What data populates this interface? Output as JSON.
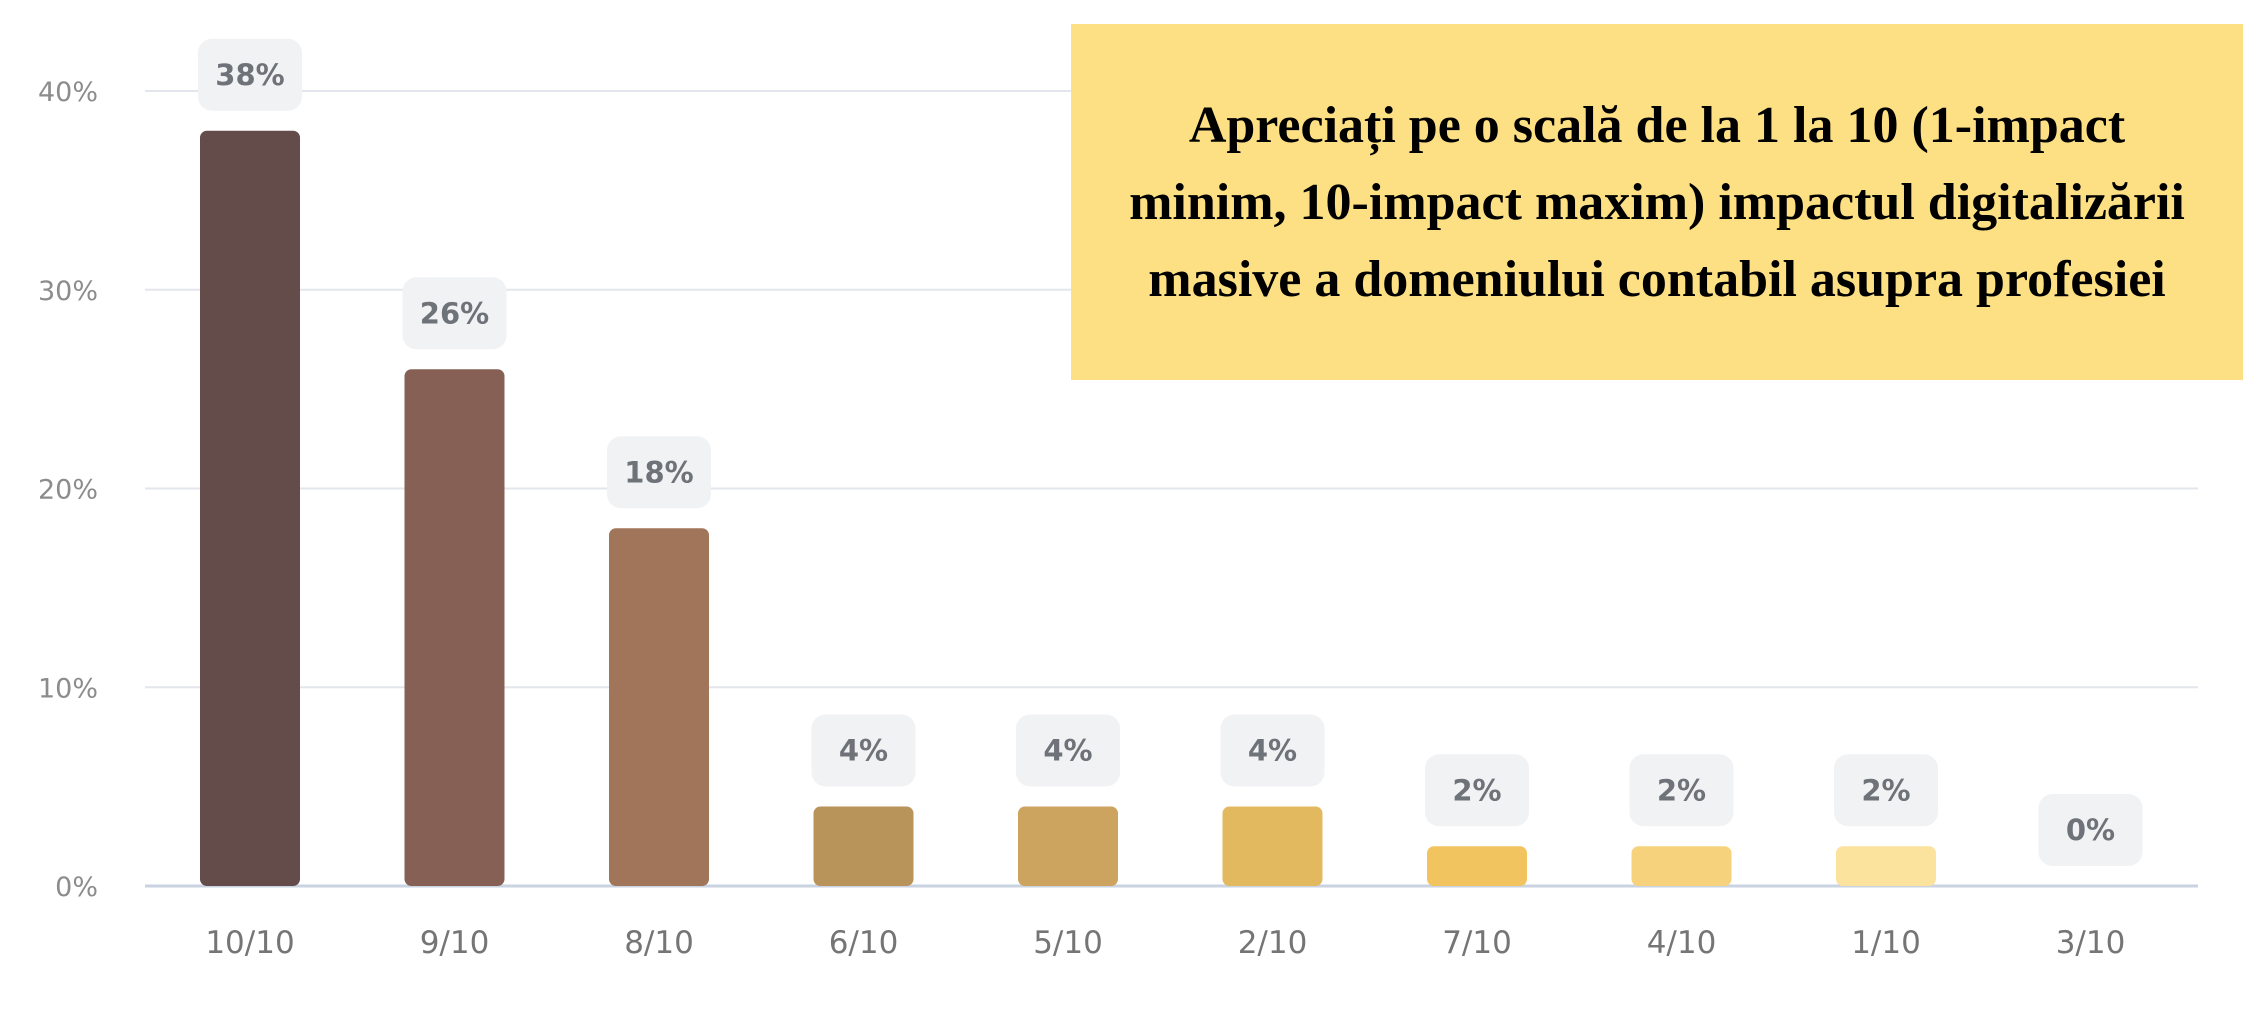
{
  "chart_data": {
    "type": "bar",
    "title": "Apreciați pe o scală de la 1 la 10 (1-impact minim, 10-impact maxim) impactul digitalizării masive a domeniului contabil asupra profesiei",
    "categories": [
      "10/10",
      "9/10",
      "8/10",
      "6/10",
      "5/10",
      "2/10",
      "7/10",
      "4/10",
      "1/10",
      "3/10"
    ],
    "values": [
      38,
      26,
      18,
      4,
      4,
      4,
      2,
      2,
      2,
      0
    ],
    "data_labels": [
      "38%",
      "26%",
      "18%",
      "4%",
      "4%",
      "4%",
      "2%",
      "2%",
      "2%",
      "0%"
    ],
    "colors": [
      "#634c4a",
      "#876055",
      "#a0755a",
      "#b8935a",
      "#cca460",
      "#e2b95f",
      "#f2c45f",
      "#f7d27c",
      "#fce39d",
      "#fdf1cc"
    ],
    "y_ticks": [
      0,
      10,
      20,
      30,
      40
    ],
    "y_tick_labels": [
      "0%",
      "10%",
      "20%",
      "30%",
      "40%"
    ],
    "ylim": [
      0,
      40
    ],
    "grid": true,
    "xlabel": "",
    "ylabel": ""
  }
}
